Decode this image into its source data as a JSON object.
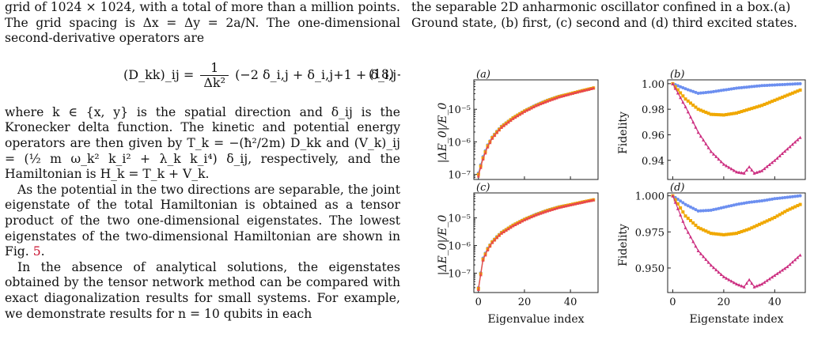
{
  "left_column": {
    "line_top": "grid of 1024 × 1024, with a total of more than a million points. The grid spacing is Δx = Δy = 2a/N. The one-dimensional second-derivative operators are",
    "equation": {
      "lhs": "(D_kk)_ij = ",
      "frac_num": "1",
      "frac_den": "Δk²",
      "rhs": "(−2 δ_i,j + δ_i,j+1 + δ_i,j−1) ,",
      "number": "(18)"
    },
    "para1": "where k ∈ {x, y} is the spatial direction and δ_ij is the Kronecker delta function. The kinetic and potential energy operators are then given by T_k = −(ħ²/2m) D_kk and (V_k)_ij = (½ m ω_k² k_i² + λ_k k_i⁴) δ_ij, respectively, and the Hamiltonian is H_k = T_k + V_k.",
    "para2_text": "As the potential in the two directions are separable, the joint eigenstate of the total Hamiltonian is obtained as a tensor product of the two one-dimensional eigenstates. The lowest eigenstates of the two-dimensional Hamiltonian are shown in Fig. ",
    "para2_ref": "5",
    "para2_end": ".",
    "para3": "In the absence of analytical solutions, the eigenstates obtained by the tensor network method can be compared with exact diagonalization results for small systems. For example, we demonstrate results for n = 10 qubits in each"
  },
  "caption": {
    "line1": "the separable 2D anharmonic oscillator confined in a box.(a)",
    "line2": "Ground state, (b) first, (c) second and (d) third excited states."
  },
  "figure": {
    "panel_labels": [
      "(a)",
      "(b)",
      "(c)",
      "(d)"
    ],
    "left_ylabel": "|ΔE_0|/E_0",
    "right_ylabel": "Fidelity",
    "left_xlabel": "Eigenvalue index",
    "right_xlabel": "Eigenstate index",
    "x_ticks": [
      "0",
      "20",
      "40"
    ],
    "log_ticks": [
      "10⁻⁵",
      "10⁻⁶",
      "10⁻⁷"
    ],
    "b_ticks": [
      "1.00",
      "0.98",
      "0.96",
      "0.94"
    ],
    "d_ticks": [
      "1.000",
      "0.975",
      "0.950"
    ],
    "colors": {
      "blue": "#6c8ff0",
      "orange": "#f0a800",
      "red": "#e8454f",
      "magenta": "#cc2e80"
    }
  },
  "chart_data": [
    {
      "type": "scatter",
      "panel": "(a)",
      "xlabel": "Eigenvalue index",
      "ylabel": "|ΔE_0|/E_0",
      "yscale": "log",
      "xlim": [
        -2,
        52
      ],
      "ylim": [
        7e-08,
        8e-05
      ],
      "series": [
        {
          "color": "#6c8ff0",
          "x": [
            0,
            2,
            4,
            6,
            8,
            10,
            15,
            20,
            25,
            30,
            35,
            40,
            45,
            50
          ],
          "y": [
            1.1e-07,
            3.5e-07,
            8e-07,
            1.4e-06,
            2.1e-06,
            3e-06,
            5.5e-06,
            9e-06,
            1.35e-05,
            1.9e-05,
            2.5e-05,
            3e-05,
            3.7e-05,
            4.5e-05
          ]
        },
        {
          "color": "#f0a800",
          "x": [
            0,
            2,
            4,
            6,
            8,
            10,
            15,
            20,
            25,
            30,
            35,
            40,
            45,
            50
          ],
          "y": [
            1e-07,
            3.2e-07,
            7.5e-07,
            1.35e-06,
            2e-06,
            2.9e-06,
            5.4e-06,
            8.8e-06,
            1.3e-05,
            1.85e-05,
            2.45e-05,
            3e-05,
            3.7e-05,
            4.5e-05
          ]
        },
        {
          "color": "#e8454f",
          "x": [
            0,
            2,
            4,
            6,
            8,
            10,
            15,
            20,
            25,
            30,
            35,
            40,
            45,
            50
          ],
          "y": [
            9e-08,
            3e-07,
            7e-07,
            1.3e-06,
            1.95e-06,
            2.8e-06,
            5.2e-06,
            8.6e-06,
            1.3e-05,
            1.8e-05,
            2.4e-05,
            3e-05,
            3.7e-05,
            4.5e-05
          ]
        }
      ]
    },
    {
      "type": "scatter",
      "panel": "(b)",
      "xlabel": "",
      "ylabel": "Fidelity",
      "xlim": [
        -2,
        52
      ],
      "ylim": [
        0.925,
        1.003
      ],
      "series": [
        {
          "color": "#6c8ff0",
          "x": [
            0,
            5,
            10,
            15,
            20,
            25,
            30,
            35,
            40,
            45,
            50
          ],
          "y": [
            1.0,
            0.996,
            0.9925,
            0.9935,
            0.995,
            0.9965,
            0.9975,
            0.9985,
            0.999,
            0.9995,
            1.0
          ]
        },
        {
          "color": "#f0a800",
          "x": [
            0,
            5,
            10,
            15,
            20,
            25,
            30,
            35,
            40,
            45,
            50
          ],
          "y": [
            1.0,
            0.988,
            0.98,
            0.976,
            0.9755,
            0.977,
            0.98,
            0.983,
            0.987,
            0.991,
            0.995
          ]
        },
        {
          "color": "#cc2e80",
          "x": [
            0,
            5,
            10,
            15,
            20,
            25,
            28,
            30,
            32,
            35,
            40,
            45,
            50
          ],
          "y": [
            1.0,
            0.982,
            0.962,
            0.947,
            0.937,
            0.931,
            0.93,
            0.935,
            0.93,
            0.932,
            0.94,
            0.949,
            0.958
          ]
        }
      ]
    },
    {
      "type": "scatter",
      "panel": "(c)",
      "xlabel": "Eigenvalue index",
      "ylabel": "|ΔE_0|/E_0",
      "yscale": "log",
      "xlim": [
        -2,
        52
      ],
      "ylim": [
        2e-08,
        8e-05
      ],
      "series": [
        {
          "color": "#6c8ff0",
          "x": [
            0,
            2,
            4,
            6,
            8,
            10,
            15,
            20,
            25,
            30,
            35,
            40,
            45,
            50
          ],
          "y": [
            3e-08,
            3.5e-07,
            8e-07,
            1.4e-06,
            2.1e-06,
            3e-06,
            5.5e-06,
            9e-06,
            1.35e-05,
            1.9e-05,
            2.5e-05,
            3e-05,
            3.7e-05,
            4.5e-05
          ]
        },
        {
          "color": "#f0a800",
          "x": [
            0,
            2,
            4,
            6,
            8,
            10,
            15,
            20,
            25,
            30,
            35,
            40,
            45,
            50
          ],
          "y": [
            2.8e-08,
            3.2e-07,
            7.5e-07,
            1.35e-06,
            2e-06,
            2.9e-06,
            5.4e-06,
            8.8e-06,
            1.3e-05,
            1.85e-05,
            2.45e-05,
            3e-05,
            3.7e-05,
            4.5e-05
          ]
        },
        {
          "color": "#e8454f",
          "x": [
            0,
            2,
            4,
            6,
            8,
            10,
            15,
            20,
            25,
            30,
            35,
            40,
            45,
            50
          ],
          "y": [
            2.6e-08,
            3e-07,
            7e-07,
            1.3e-06,
            1.95e-06,
            2.8e-06,
            5.2e-06,
            8.6e-06,
            1.3e-05,
            1.8e-05,
            2.4e-05,
            3e-05,
            3.7e-05,
            4.5e-05
          ]
        }
      ]
    },
    {
      "type": "scatter",
      "panel": "(d)",
      "xlabel": "Eigenstate index",
      "ylabel": "Fidelity",
      "xlim": [
        -2,
        52
      ],
      "ylim": [
        0.933,
        1.002
      ],
      "series": [
        {
          "color": "#6c8ff0",
          "x": [
            0,
            5,
            10,
            15,
            20,
            25,
            30,
            35,
            40,
            45,
            50
          ],
          "y": [
            1.0,
            0.994,
            0.9895,
            0.99,
            0.992,
            0.994,
            0.9955,
            0.9965,
            0.998,
            0.999,
            1.0
          ]
        },
        {
          "color": "#f0a800",
          "x": [
            0,
            5,
            10,
            15,
            20,
            25,
            30,
            35,
            40,
            45,
            50
          ],
          "y": [
            1.0,
            0.986,
            0.978,
            0.974,
            0.973,
            0.974,
            0.977,
            0.981,
            0.985,
            0.99,
            0.994
          ]
        },
        {
          "color": "#cc2e80",
          "x": [
            0,
            5,
            10,
            15,
            20,
            25,
            28,
            30,
            32,
            35,
            40,
            45,
            50
          ],
          "y": [
            1.0,
            0.978,
            0.962,
            0.952,
            0.944,
            0.939,
            0.937,
            0.942,
            0.937,
            0.939,
            0.945,
            0.951,
            0.959
          ]
        }
      ]
    }
  ]
}
